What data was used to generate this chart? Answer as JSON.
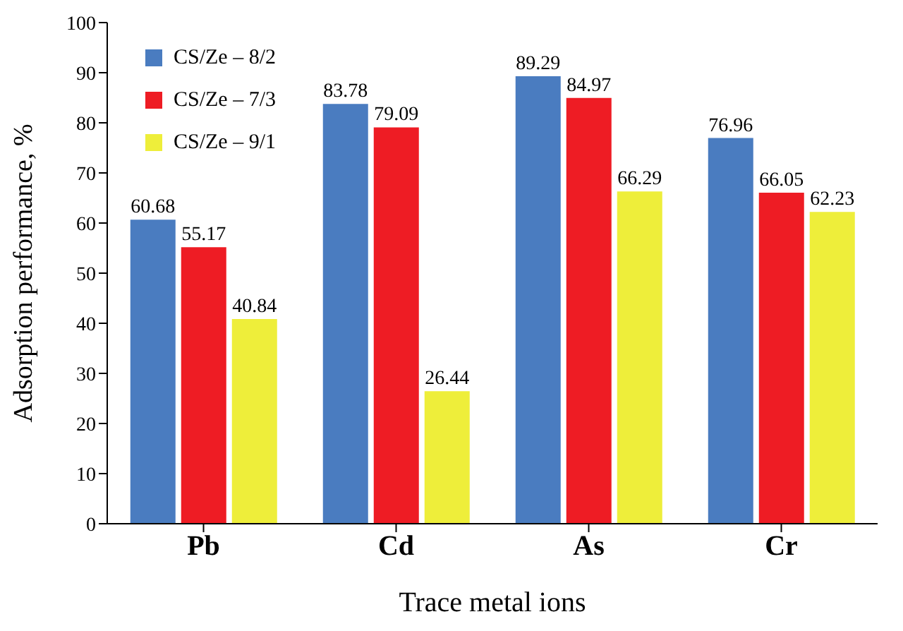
{
  "chart_data": {
    "type": "bar",
    "xlabel": "Trace metal ions",
    "ylabel": "Adsorption performance, %",
    "categories": [
      "Pb",
      "Cd",
      "As",
      "Cr"
    ],
    "series": [
      {
        "name": "CS/Ze – 8/2",
        "color": "#4a7cc0",
        "values": [
          60.68,
          83.78,
          89.29,
          76.96
        ]
      },
      {
        "name": "CS/Ze – 7/3",
        "color": "#ee1c24",
        "values": [
          55.17,
          79.09,
          84.97,
          66.05
        ]
      },
      {
        "name": "CS/Ze – 9/1",
        "color": "#eeee3a",
        "values": [
          40.84,
          26.44,
          66.29,
          62.23
        ]
      }
    ],
    "ylim": [
      0,
      100
    ],
    "yticks": [
      0,
      10,
      20,
      30,
      40,
      50,
      60,
      70,
      80,
      90,
      100
    ],
    "data_labels": true,
    "legend": "top left",
    "grid": false
  }
}
